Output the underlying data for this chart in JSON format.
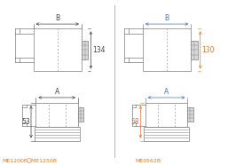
{
  "bg_color": "#ffffff",
  "line_color": "#888888",
  "dim_color_dark": "#444444",
  "dim_color_orange": "#e07820",
  "dim_color_blue": "#4472c4",
  "label_left": "ME1200B，ME1250B",
  "label_right": "ME0562B",
  "label_color_left": "#e07820",
  "label_color_right": "#e07820",
  "dim_B_label": "B",
  "dim_A_label": "A",
  "left_top_dim": "134",
  "right_top_dim": "130",
  "left_bot_dim": "53",
  "right_bot_dim": "58",
  "divider_color": "#bbbbbb",
  "fill_light": "#d8d8d8",
  "fill_dark": "#b0b0b0"
}
